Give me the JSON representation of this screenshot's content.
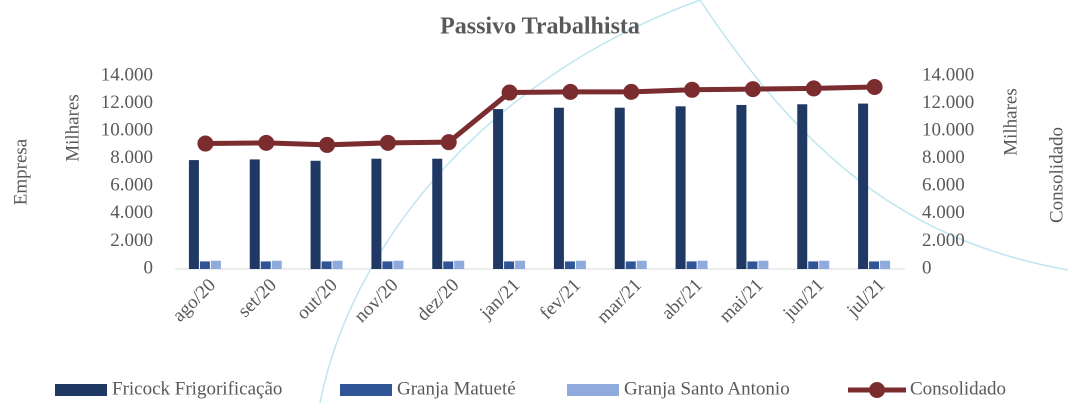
{
  "chart_data": {
    "type": "bar",
    "title": "Passivo Trabalhista",
    "y_label": "Empresa",
    "y_unit_label": "Milhares",
    "y2_label": "Consolidado",
    "y2_unit_label": "Milhares",
    "categories": [
      "ago/20",
      "set/20",
      "out/20",
      "nov/20",
      "dez/20",
      "jan/21",
      "fev/21",
      "mar/21",
      "abr/21",
      "mai/21",
      "jun/21",
      "jul/21"
    ],
    "series": [
      {
        "name": "Fricock Frigorificação",
        "type": "bar",
        "color": "#1f3864",
        "values": [
          7900,
          7950,
          7850,
          8000,
          8000,
          11600,
          11700,
          11700,
          11800,
          11900,
          11950,
          12000
        ]
      },
      {
        "name": "Granja Matueté",
        "type": "bar",
        "color": "#2f5597",
        "values": [
          550,
          550,
          550,
          550,
          550,
          550,
          550,
          550,
          550,
          550,
          550,
          550
        ]
      },
      {
        "name": "Granja Santo Antonio",
        "type": "bar",
        "color": "#8faadc",
        "values": [
          600,
          600,
          600,
          600,
          600,
          600,
          600,
          600,
          600,
          600,
          600,
          600
        ]
      },
      {
        "name": "Consolidado",
        "type": "line",
        "axis": "y2",
        "color": "#7b2c2f",
        "values": [
          9100,
          9150,
          9000,
          9150,
          9200,
          12800,
          12850,
          12850,
          13000,
          13050,
          13100,
          13200
        ]
      }
    ],
    "ylim": [
      0,
      14000
    ],
    "yticks": [
      0,
      {
        "value": 2000,
        "label": "2.000"
      },
      {
        "value": 4000,
        "label": "4.000"
      },
      {
        "value": 6000,
        "label": "6.000"
      },
      {
        "value": 8000,
        "label": "8.000"
      },
      {
        "value": 10000,
        "label": "10.000"
      },
      {
        "value": 12000,
        "label": "12.000"
      },
      {
        "value": 14000,
        "label": "14.000"
      }
    ],
    "y2lim": [
      0,
      14000
    ],
    "y2ticks": [
      0,
      {
        "value": 2000,
        "label": "2.000"
      },
      {
        "value": 4000,
        "label": "4.000"
      },
      {
        "value": 6000,
        "label": "6.000"
      },
      {
        "value": 8000,
        "label": "8.000"
      },
      {
        "value": 10000,
        "label": "10.000"
      },
      {
        "value": 12000,
        "label": "12.000"
      },
      {
        "value": 14000,
        "label": "14.000"
      }
    ],
    "grid": false,
    "legend": "bottom"
  }
}
